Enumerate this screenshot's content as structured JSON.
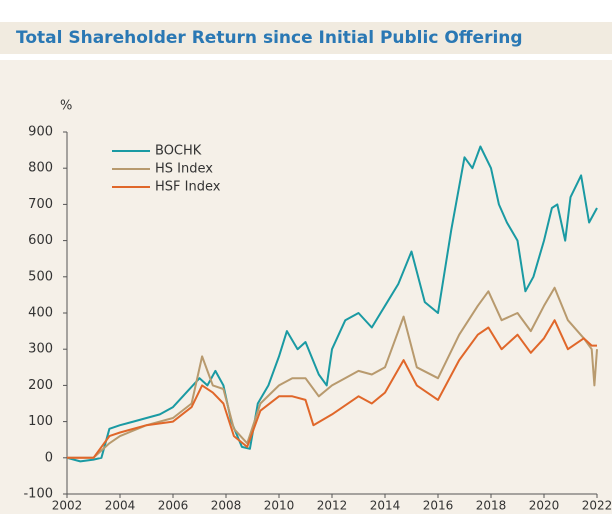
{
  "chart_data": {
    "type": "line",
    "title": "Total Shareholder Return since Initial Public Offering",
    "ylabel": "%",
    "xlim": [
      2002,
      2022
    ],
    "xticks": [
      2002,
      2004,
      2006,
      2008,
      2010,
      2012,
      2014,
      2016,
      2018,
      2020,
      2022
    ],
    "ylim": [
      -100,
      900
    ],
    "yticks": [
      -100,
      0,
      100,
      200,
      300,
      400,
      500,
      600,
      700,
      800,
      900
    ],
    "grid": false,
    "legend": "upper left",
    "series": [
      {
        "name": "BOCHK",
        "color": "#1a9aa3",
        "x": [
          2002,
          2002.5,
          2003,
          2003.3,
          2003.6,
          2004,
          2004.5,
          2005,
          2005.5,
          2006,
          2006.5,
          2007,
          2007.3,
          2007.6,
          2007.9,
          2008.2,
          2008.6,
          2008.9,
          2009.2,
          2009.6,
          2010,
          2010.3,
          2010.7,
          2011,
          2011.5,
          2011.8,
          2012,
          2012.5,
          2013,
          2013.5,
          2014,
          2014.5,
          2015,
          2015.5,
          2016,
          2016.5,
          2017,
          2017.3,
          2017.6,
          2018,
          2018.3,
          2018.6,
          2019,
          2019.3,
          2019.6,
          2020,
          2020.3,
          2020.5,
          2020.8,
          2021,
          2021.4,
          2021.7,
          2022
        ],
        "values": [
          0,
          -10,
          -5,
          0,
          80,
          90,
          100,
          110,
          120,
          140,
          180,
          220,
          200,
          240,
          200,
          100,
          30,
          25,
          150,
          200,
          280,
          350,
          300,
          320,
          230,
          200,
          300,
          380,
          400,
          360,
          420,
          480,
          570,
          430,
          400,
          630,
          830,
          800,
          860,
          800,
          700,
          650,
          600,
          460,
          500,
          600,
          690,
          700,
          600,
          720,
          780,
          650,
          690
        ]
      },
      {
        "name": "HS Index",
        "color": "#b89a6e",
        "x": [
          2002,
          2003,
          2003.6,
          2004,
          2005,
          2006,
          2006.7,
          2007.1,
          2007.5,
          2007.9,
          2008.3,
          2008.8,
          2009.3,
          2010,
          2010.5,
          2011,
          2011.5,
          2012,
          2013,
          2013.5,
          2014,
          2014.7,
          2015.2,
          2016,
          2016.8,
          2017.5,
          2017.9,
          2018.4,
          2019,
          2019.5,
          2020,
          2020.4,
          2020.9,
          2021.5,
          2021.8,
          2021.9,
          2022
        ],
        "values": [
          0,
          0,
          40,
          60,
          90,
          110,
          150,
          280,
          200,
          190,
          80,
          40,
          150,
          200,
          220,
          220,
          170,
          200,
          240,
          230,
          250,
          390,
          250,
          220,
          340,
          420,
          460,
          380,
          400,
          350,
          420,
          470,
          380,
          330,
          300,
          200,
          300
        ]
      },
      {
        "name": "HSF Index",
        "color": "#e0672a",
        "x": [
          2002,
          2003,
          2003.6,
          2004,
          2005,
          2006,
          2006.7,
          2007.1,
          2007.5,
          2007.9,
          2008.3,
          2008.8,
          2009.3,
          2010,
          2010.5,
          2011,
          2011.3,
          2012,
          2013,
          2013.5,
          2014,
          2014.7,
          2015.2,
          2016,
          2016.8,
          2017.5,
          2017.9,
          2018.4,
          2019,
          2019.5,
          2020,
          2020.4,
          2020.9,
          2021.5,
          2021.8,
          2022
        ],
        "values": [
          0,
          0,
          60,
          70,
          90,
          100,
          140,
          200,
          180,
          150,
          60,
          30,
          130,
          170,
          170,
          160,
          90,
          120,
          170,
          150,
          180,
          270,
          200,
          160,
          270,
          340,
          360,
          300,
          340,
          290,
          330,
          380,
          300,
          330,
          310,
          310
        ]
      }
    ]
  }
}
